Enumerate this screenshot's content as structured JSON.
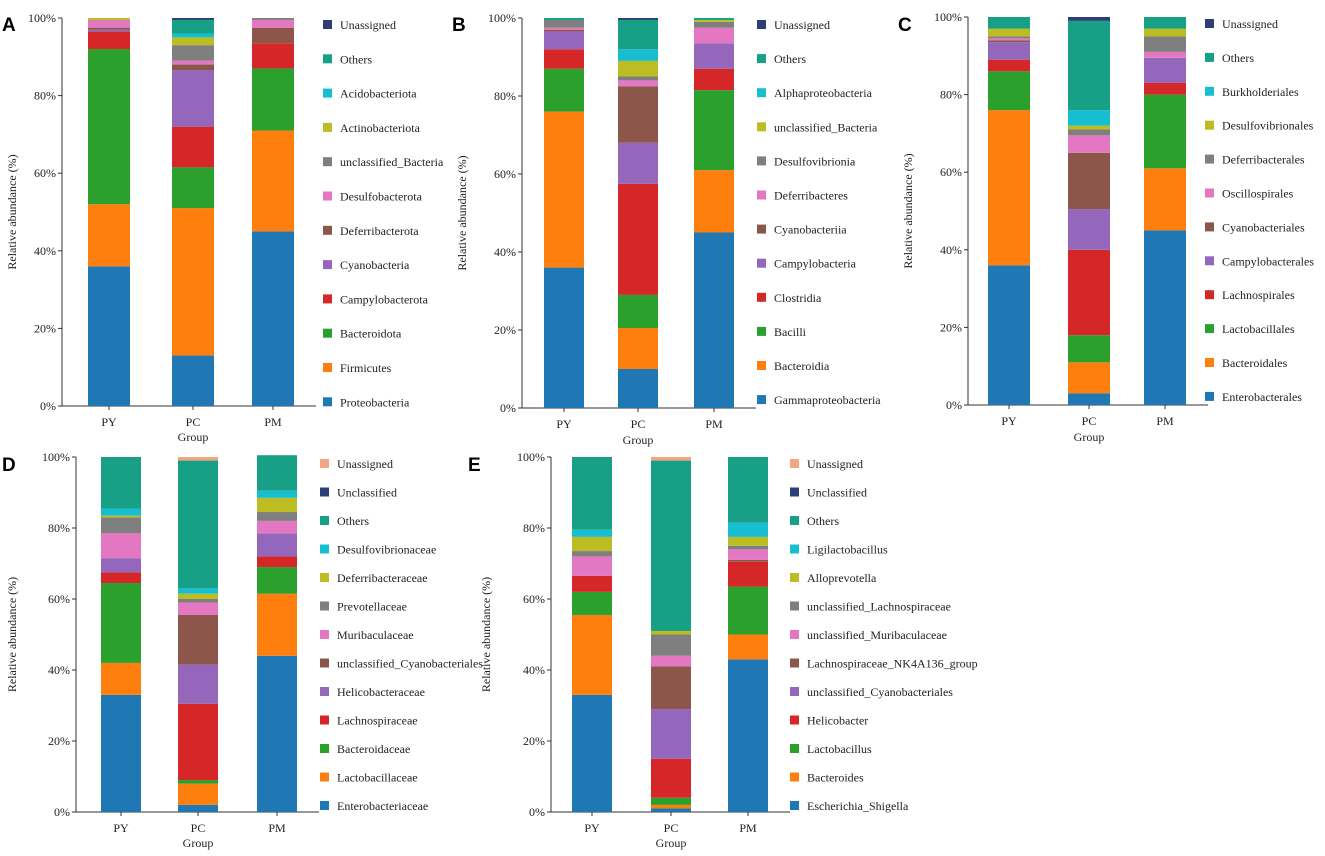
{
  "chart_data": [
    {
      "panel": "A",
      "type": "bar",
      "stacked": true,
      "categories": [
        "PY",
        "PC",
        "PM"
      ],
      "xlabel": "Group",
      "ylabel": "Relative abundance (%)",
      "ylim": [
        0,
        100
      ],
      "yticks": [
        "0%",
        "20%",
        "40%",
        "60%",
        "80%",
        "100%"
      ],
      "series": [
        {
          "name": "Proteobacteria",
          "color": "#1f77b4",
          "values": [
            36,
            13,
            45
          ]
        },
        {
          "name": "Firmicutes",
          "color": "#ff7f0e",
          "values": [
            16,
            38,
            26
          ]
        },
        {
          "name": "Bacteroidota",
          "color": "#2ca02c",
          "values": [
            40,
            10.5,
            16
          ]
        },
        {
          "name": "Campylobacterota",
          "color": "#d62728",
          "values": [
            4.5,
            10.5,
            6.5
          ]
        },
        {
          "name": "Cyanobacteria",
          "color": "#9467bd",
          "values": [
            0.5,
            14.5,
            0
          ]
        },
        {
          "name": "Deferribacterota",
          "color": "#8c564b",
          "values": [
            0.5,
            1.5,
            4
          ]
        },
        {
          "name": "Desulfobacterota",
          "color": "#e377c2",
          "values": [
            2,
            1,
            2
          ]
        },
        {
          "name": "unclassified_Bacteria",
          "color": "#7f7f7f",
          "values": [
            0,
            4,
            0.5
          ]
        },
        {
          "name": "Actinobacteriota",
          "color": "#bcbd22",
          "values": [
            0.5,
            2,
            0
          ]
        },
        {
          "name": "Acidobacteriota",
          "color": "#17becf",
          "values": [
            0,
            1,
            0
          ]
        },
        {
          "name": "Others",
          "color": "#17a085",
          "values": [
            0,
            3.5,
            0
          ]
        },
        {
          "name": "Unassigned",
          "color": "#2c3e7a",
          "values": [
            0,
            0.5,
            0
          ]
        }
      ]
    },
    {
      "panel": "B",
      "type": "bar",
      "stacked": true,
      "categories": [
        "PY",
        "PC",
        "PM"
      ],
      "xlabel": "Group",
      "ylabel": "Relative abundance (%)",
      "ylim": [
        0,
        100
      ],
      "yticks": [
        "0%",
        "20%",
        "40%",
        "60%",
        "80%",
        "100%"
      ],
      "series": [
        {
          "name": "Gammaproteobacteria",
          "color": "#1f77b4",
          "values": [
            36,
            10,
            45
          ]
        },
        {
          "name": "Bacteroidia",
          "color": "#ff7f0e",
          "values": [
            40,
            10.5,
            16
          ]
        },
        {
          "name": "Bacilli",
          "color": "#2ca02c",
          "values": [
            11,
            8.5,
            20.5
          ]
        },
        {
          "name": "Clostridia",
          "color": "#d62728",
          "values": [
            5,
            28.5,
            5.5
          ]
        },
        {
          "name": "Campylobacteria",
          "color": "#9467bd",
          "values": [
            4.5,
            10.5,
            6.5
          ]
        },
        {
          "name": "Cyanobacteriia",
          "color": "#8c564b",
          "values": [
            0.5,
            14.5,
            0
          ]
        },
        {
          "name": "Deferribacteres",
          "color": "#e377c2",
          "values": [
            0.5,
            1.5,
            4
          ]
        },
        {
          "name": "Desulfovibrionia",
          "color": "#7f7f7f",
          "values": [
            2,
            1,
            1.5
          ]
        },
        {
          "name": "unclassified_Bacteria",
          "color": "#bcbd22",
          "values": [
            0,
            4,
            0.5
          ]
        },
        {
          "name": "Alphaproteobacteria",
          "color": "#17becf",
          "values": [
            0,
            3,
            0
          ]
        },
        {
          "name": "Others",
          "color": "#17a085",
          "values": [
            0.5,
            7.5,
            0.5
          ]
        },
        {
          "name": "Unassigned",
          "color": "#2c3e7a",
          "values": [
            0,
            0.5,
            0
          ]
        }
      ]
    },
    {
      "panel": "C",
      "type": "bar",
      "stacked": true,
      "categories": [
        "PY",
        "PC",
        "PM"
      ],
      "xlabel": "Group",
      "ylabel": "Relative abundance (%)",
      "ylim": [
        0,
        100
      ],
      "yticks": [
        "0%",
        "20%",
        "40%",
        "60%",
        "80%",
        "100%"
      ],
      "series": [
        {
          "name": "Enterobacterales",
          "color": "#1f77b4",
          "values": [
            36,
            3,
            45
          ]
        },
        {
          "name": "Bacteroidales",
          "color": "#ff7f0e",
          "values": [
            40,
            8,
            16
          ]
        },
        {
          "name": "Lactobacillales",
          "color": "#2ca02c",
          "values": [
            10,
            7,
            19
          ]
        },
        {
          "name": "Lachnospirales",
          "color": "#d62728",
          "values": [
            3,
            22,
            3
          ]
        },
        {
          "name": "Campylobacterales",
          "color": "#9467bd",
          "values": [
            4.5,
            10.5,
            6.5
          ]
        },
        {
          "name": "Cyanobacteriales",
          "color": "#8c564b",
          "values": [
            0.5,
            14.5,
            0
          ]
        },
        {
          "name": "Oscillospirales",
          "color": "#e377c2",
          "values": [
            0.5,
            4.5,
            1.5
          ]
        },
        {
          "name": "Deferribacterales",
          "color": "#7f7f7f",
          "values": [
            0.5,
            1.5,
            4
          ]
        },
        {
          "name": "Desulfovibrionales",
          "color": "#bcbd22",
          "values": [
            2,
            1,
            2
          ]
        },
        {
          "name": "Burkholderiales",
          "color": "#17becf",
          "values": [
            0,
            4,
            0
          ]
        },
        {
          "name": "Others",
          "color": "#17a085",
          "values": [
            3,
            23,
            3
          ]
        },
        {
          "name": "Unassigned",
          "color": "#2c3e7a",
          "values": [
            0,
            1,
            0
          ]
        }
      ]
    },
    {
      "panel": "D",
      "type": "bar",
      "stacked": true,
      "categories": [
        "PY",
        "PC",
        "PM"
      ],
      "xlabel": "Group",
      "ylabel": "Relative abundance (%)",
      "ylim": [
        0,
        100
      ],
      "yticks": [
        "0%",
        "20%",
        "40%",
        "60%",
        "80%",
        "100%"
      ],
      "series": [
        {
          "name": "Enterobacteriaceae",
          "color": "#1f77b4",
          "values": [
            33,
            2,
            44
          ]
        },
        {
          "name": "Lactobacillaceae",
          "color": "#ff7f0e",
          "values": [
            9,
            6,
            17.5
          ]
        },
        {
          "name": "Bacteroidaceae",
          "color": "#2ca02c",
          "values": [
            22.5,
            1,
            7.5
          ]
        },
        {
          "name": "Lachnospiraceae",
          "color": "#d62728",
          "values": [
            3,
            21.5,
            3
          ]
        },
        {
          "name": "Helicobacteraceae",
          "color": "#9467bd",
          "values": [
            4,
            11,
            6.5
          ]
        },
        {
          "name": "unclassified_Cyanobacteriales",
          "color": "#8c564b",
          "values": [
            0,
            14,
            0
          ]
        },
        {
          "name": "Muribaculaceae",
          "color": "#e377c2",
          "values": [
            7,
            3.5,
            3.5
          ]
        },
        {
          "name": "Prevotellaceae",
          "color": "#7f7f7f",
          "values": [
            4.5,
            1,
            2.5
          ]
        },
        {
          "name": "Deferribacteraceae",
          "color": "#bcbd22",
          "values": [
            0.5,
            1.5,
            4
          ]
        },
        {
          "name": "Desulfovibrionaceae",
          "color": "#17becf",
          "values": [
            2,
            1.5,
            2
          ]
        },
        {
          "name": "Others",
          "color": "#17a085",
          "values": [
            14.5,
            36,
            10
          ]
        },
        {
          "name": "Unclassified",
          "color": "#2c3e7a",
          "values": [
            0,
            0,
            0
          ]
        },
        {
          "name": "Unassigned",
          "color": "#f4a582",
          "values": [
            0,
            1,
            0
          ]
        }
      ]
    },
    {
      "panel": "E",
      "type": "bar",
      "stacked": true,
      "categories": [
        "PY",
        "PC",
        "PM"
      ],
      "xlabel": "Group",
      "ylabel": "Relative abundance (%)",
      "ylim": [
        0,
        100
      ],
      "yticks": [
        "0%",
        "20%",
        "40%",
        "60%",
        "80%",
        "100%"
      ],
      "series": [
        {
          "name": "Escherichia_Shigella",
          "color": "#1f77b4",
          "values": [
            33,
            1,
            43
          ]
        },
        {
          "name": "Bacteroides",
          "color": "#ff7f0e",
          "values": [
            22.5,
            1,
            7
          ]
        },
        {
          "name": "Lactobacillus",
          "color": "#2ca02c",
          "values": [
            6.5,
            2,
            13.5
          ]
        },
        {
          "name": "Helicobacter",
          "color": "#d62728",
          "values": [
            4.5,
            11,
            7
          ]
        },
        {
          "name": "unclassified_Cyanobacteriales",
          "color": "#9467bd",
          "values": [
            0,
            14,
            0
          ]
        },
        {
          "name": "Lachnospiraceae_NK4A136_group",
          "color": "#8c564b",
          "values": [
            0,
            12,
            0.5
          ]
        },
        {
          "name": "unclassified_Muribaculaceae",
          "color": "#e377c2",
          "values": [
            5.5,
            3,
            3
          ]
        },
        {
          "name": "unclassified_Lachnospiraceae",
          "color": "#7f7f7f",
          "values": [
            1.5,
            6,
            1
          ]
        },
        {
          "name": "Alloprevotella",
          "color": "#bcbd22",
          "values": [
            4,
            1,
            2.5
          ]
        },
        {
          "name": "Ligilactobacillus",
          "color": "#17becf",
          "values": [
            2,
            0,
            4
          ]
        },
        {
          "name": "Others",
          "color": "#17a085",
          "values": [
            20.5,
            48,
            18.5
          ]
        },
        {
          "name": "Unclassified",
          "color": "#2c3e7a",
          "values": [
            0,
            0,
            0
          ]
        },
        {
          "name": "Unassigned",
          "color": "#f4a582",
          "values": [
            0,
            1,
            0
          ]
        }
      ]
    }
  ]
}
